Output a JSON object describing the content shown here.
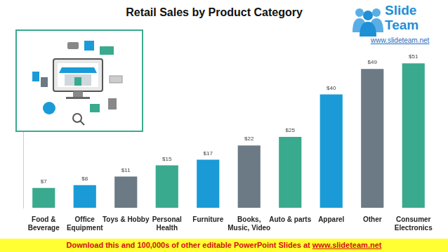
{
  "chart_data": {
    "type": "bar",
    "title": "Retail Sales by Product Category",
    "categories": [
      "Food & Beverage",
      "Office Equipment",
      "Toys & Hobby",
      "Personal Health",
      "Furniture",
      "Books, Music, Video",
      "Auto & parts",
      "Apparel",
      "Other",
      "Consumer Electronics"
    ],
    "values": [
      7,
      8,
      11,
      15,
      17,
      22,
      25,
      40,
      49,
      51
    ],
    "value_labels": [
      "$7",
      "$8",
      "$11",
      "$15",
      "$17",
      "$22",
      "$25",
      "$40",
      "$49",
      "$51"
    ],
    "colors": [
      "#3aaa8e",
      "#1a9bd7",
      "#6b7a85",
      "#3aaa8e",
      "#1a9bd7",
      "#6b7a85",
      "#3aaa8e",
      "#1a9bd7",
      "#6b7a85",
      "#3aaa8e"
    ],
    "ylim": [
      0,
      55
    ],
    "grid": false,
    "data_labels": true,
    "tick_labels": "x"
  },
  "logo": {
    "text": "Slide Team",
    "url": "www.slideteam.net"
  },
  "footer": {
    "text": "Download this and 100,000s of other editable PowerPoint Slides at",
    "link": "www.slideteam.net"
  }
}
